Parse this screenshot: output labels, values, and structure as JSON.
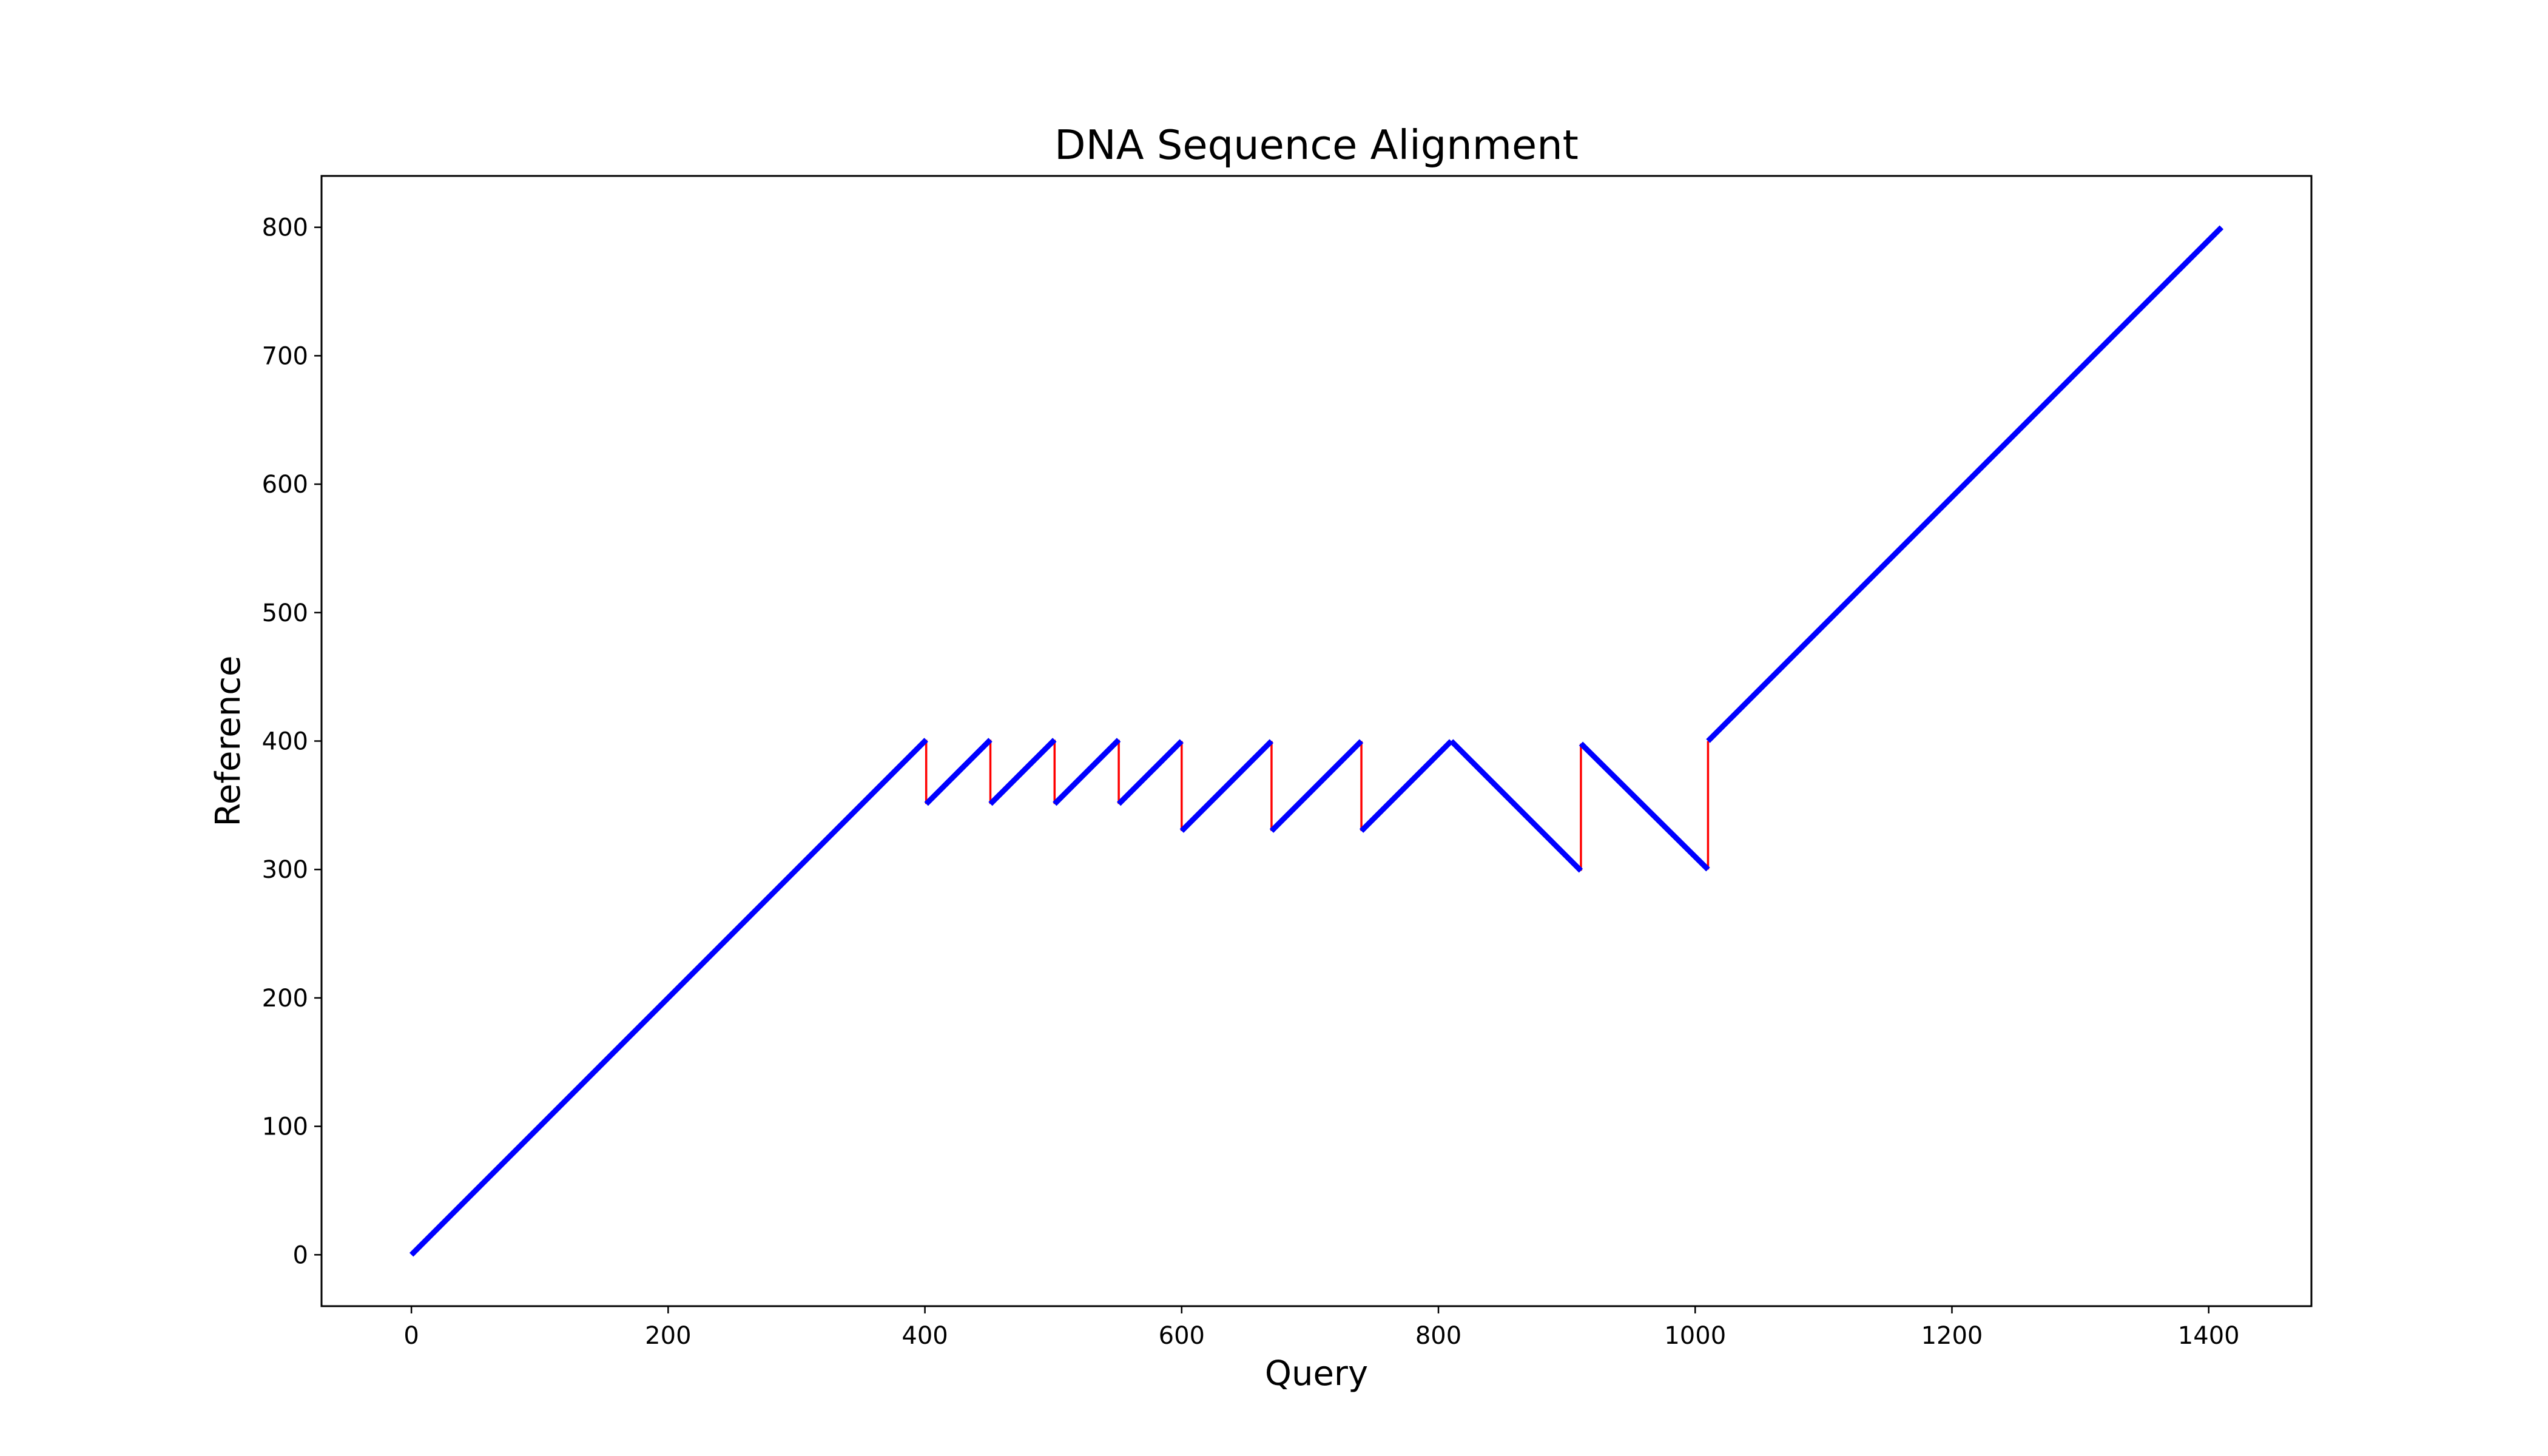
{
  "chart_data": {
    "type": "line",
    "title": "DNA Sequence Alignment",
    "xlabel": "Query",
    "ylabel": "Reference",
    "xlim": [
      -70,
      1480
    ],
    "ylim": [
      -40,
      840
    ],
    "xticks": [
      0,
      200,
      400,
      600,
      800,
      1000,
      1200,
      1400
    ],
    "yticks": [
      0,
      100,
      200,
      300,
      400,
      500,
      600,
      700,
      800
    ],
    "grid": false,
    "legend": "none",
    "series": [
      {
        "role": "alignment segments",
        "color": "#0000ff",
        "segments": [
          [
            [
              0,
              0
            ],
            [
              401,
              401
            ]
          ],
          [
            [
              401,
              351
            ],
            [
              451,
              401
            ]
          ],
          [
            [
              451,
              351
            ],
            [
              501,
              401
            ]
          ],
          [
            [
              501,
              351
            ],
            [
              551,
              401
            ]
          ],
          [
            [
              551,
              351
            ],
            [
              600,
              400
            ]
          ],
          [
            [
              600,
              330
            ],
            [
              670,
              400
            ]
          ],
          [
            [
              670,
              330
            ],
            [
              740,
              400
            ]
          ],
          [
            [
              740,
              330
            ],
            [
              810,
              400
            ]
          ],
          [
            [
              810,
              400
            ],
            [
              911,
              299
            ]
          ],
          [
            [
              911,
              398
            ],
            [
              1010,
              300
            ]
          ],
          [
            [
              1010,
              400
            ],
            [
              1410,
              800
            ]
          ]
        ]
      },
      {
        "role": "jump connectors",
        "color": "#ff0000",
        "segments": [
          [
            [
              401,
              401
            ],
            [
              401,
              351
            ]
          ],
          [
            [
              451,
              401
            ],
            [
              451,
              351
            ]
          ],
          [
            [
              501,
              401
            ],
            [
              501,
              351
            ]
          ],
          [
            [
              551,
              401
            ],
            [
              551,
              351
            ]
          ],
          [
            [
              600,
              400
            ],
            [
              600,
              330
            ]
          ],
          [
            [
              670,
              400
            ],
            [
              670,
              330
            ]
          ],
          [
            [
              740,
              400
            ],
            [
              740,
              330
            ]
          ],
          [
            [
              911,
              299
            ],
            [
              911,
              398
            ]
          ],
          [
            [
              1010,
              300
            ],
            [
              1010,
              400
            ]
          ]
        ]
      }
    ]
  }
}
